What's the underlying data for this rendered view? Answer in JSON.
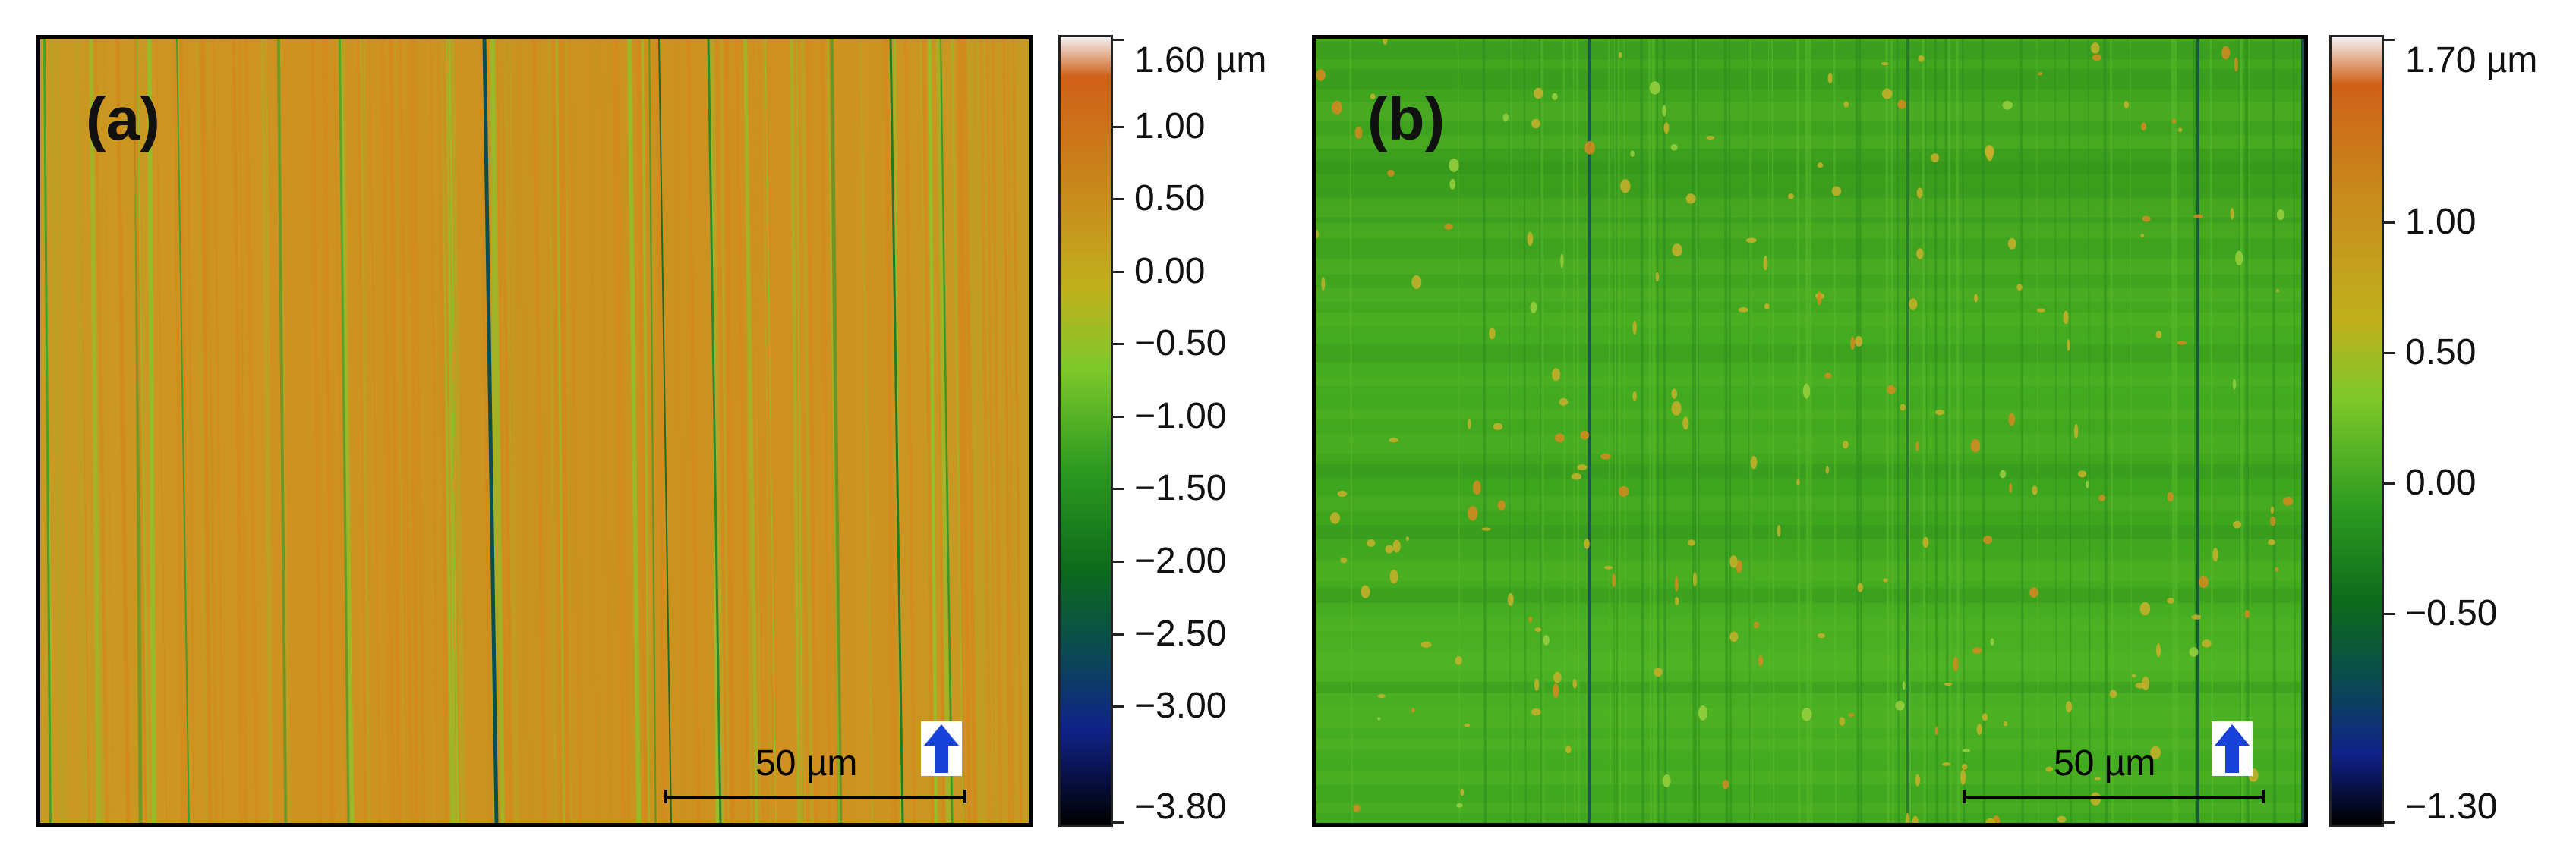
{
  "panel_a": {
    "label": "(a)",
    "scale_text": "50 µm",
    "colorbar": {
      "ticks": [
        "1.60 µm",
        "1.00",
        "0.50",
        "0.00",
        "−0.50",
        "−1.00",
        "−1.50",
        "−2.00",
        "−2.50",
        "−3.00",
        "−3.80"
      ],
      "tick_values": [
        1.6,
        1.0,
        0.5,
        0.0,
        -0.5,
        -1.0,
        -1.5,
        -2.0,
        -2.5,
        -3.0,
        -3.8
      ]
    },
    "dominant_color": "#c9951d"
  },
  "panel_b": {
    "label": "(b)",
    "scale_text": "50 µm",
    "colorbar": {
      "ticks": [
        "1.70 µm",
        "1.00",
        "0.50",
        "0.00",
        "−0.50",
        "−1.30"
      ],
      "tick_values": [
        1.7,
        1.0,
        0.5,
        0.0,
        -0.5,
        -1.3
      ]
    },
    "dominant_color": "#3fa81e"
  },
  "arrow_icon": "up-arrow-icon",
  "colormap": [
    "#f5f0f2",
    "#d2641a",
    "#c9951d",
    "#b7c21a",
    "#6ec62a",
    "#1f8a1e",
    "#0d5a1a",
    "#0f4a64",
    "#141e8c",
    "#000000"
  ]
}
